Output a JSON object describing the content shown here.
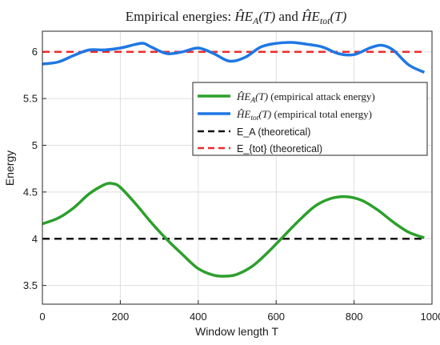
{
  "chart_data": {
    "type": "line",
    "title": "Empirical energies: ĤE_A(T) and ĤE_tot(T)",
    "xlabel": "Window length T",
    "ylabel": "Energy",
    "xlim": [
      0,
      1000
    ],
    "ylim": [
      3.3,
      6.22
    ],
    "xticks": [
      0,
      200,
      400,
      600,
      800,
      1000
    ],
    "xtick_labels": [
      "0",
      "200",
      "400",
      "600",
      "800",
      "1000"
    ],
    "yticks": [
      3.5,
      4,
      4.5,
      5,
      5.5,
      6
    ],
    "ytick_labels": [
      "3.5",
      "4",
      "4.5",
      "5",
      "5.5",
      "6"
    ],
    "grid": true,
    "legend_position": "upper-right",
    "series": [
      {
        "name": "ĤE_A(T) (empirical attack energy)",
        "color": "#2ca02c",
        "style": "solid",
        "x": [
          0,
          40,
          80,
          120,
          160,
          180,
          200,
          240,
          280,
          320,
          360,
          400,
          440,
          470,
          500,
          540,
          580,
          620,
          660,
          700,
          740,
          780,
          820,
          860,
          900,
          940,
          980
        ],
        "y": [
          4.16,
          4.22,
          4.33,
          4.48,
          4.58,
          4.59,
          4.55,
          4.37,
          4.17,
          3.99,
          3.83,
          3.68,
          3.61,
          3.6,
          3.62,
          3.71,
          3.86,
          4.03,
          4.2,
          4.35,
          4.43,
          4.45,
          4.41,
          4.31,
          4.18,
          4.07,
          4.01
        ]
      },
      {
        "name": "ĤE_tot(T) (empirical total energy)",
        "color": "#1f77e4",
        "style": "solid",
        "x": [
          0,
          40,
          80,
          120,
          160,
          200,
          240,
          260,
          280,
          320,
          360,
          400,
          440,
          480,
          520,
          560,
          600,
          640,
          680,
          720,
          760,
          800,
          840,
          870,
          900,
          940,
          980
        ],
        "y": [
          5.87,
          5.89,
          5.96,
          6.02,
          6.02,
          6.04,
          6.08,
          6.09,
          6.05,
          5.98,
          6.0,
          6.04,
          5.98,
          5.9,
          5.94,
          6.05,
          6.09,
          6.1,
          6.08,
          6.05,
          5.98,
          5.97,
          6.04,
          6.07,
          6.02,
          5.86,
          5.78
        ]
      },
      {
        "name": "E_A (theoretical)",
        "color": "#111111",
        "style": "dashed",
        "x": [
          0,
          980
        ],
        "y": [
          4.0,
          4.0
        ]
      },
      {
        "name": "E_{tot} (theoretical)",
        "color": "#ee2a2a",
        "style": "dashed",
        "x": [
          0,
          980
        ],
        "y": [
          6.0,
          6.0
        ]
      }
    ]
  },
  "legend": {
    "entries": [
      {
        "symbol": "ĤE",
        "subscript": "A",
        "arg": "(T)",
        "text": " (empirical attack energy)"
      },
      {
        "symbol": "ĤE",
        "subscript": "tot",
        "arg": "(T)",
        "text": " (empirical total energy)"
      },
      {
        "text": "E_A (theoretical)"
      },
      {
        "text": "E_{tot} (theoretical)"
      }
    ]
  },
  "title_parts": {
    "prefix": "Empirical energies: ",
    "sym1": "ĤE",
    "sub1": "A",
    "arg1": "(T)",
    "mid": " and ",
    "sym2": "ĤE",
    "sub2": "tot",
    "arg2": "(T)"
  }
}
